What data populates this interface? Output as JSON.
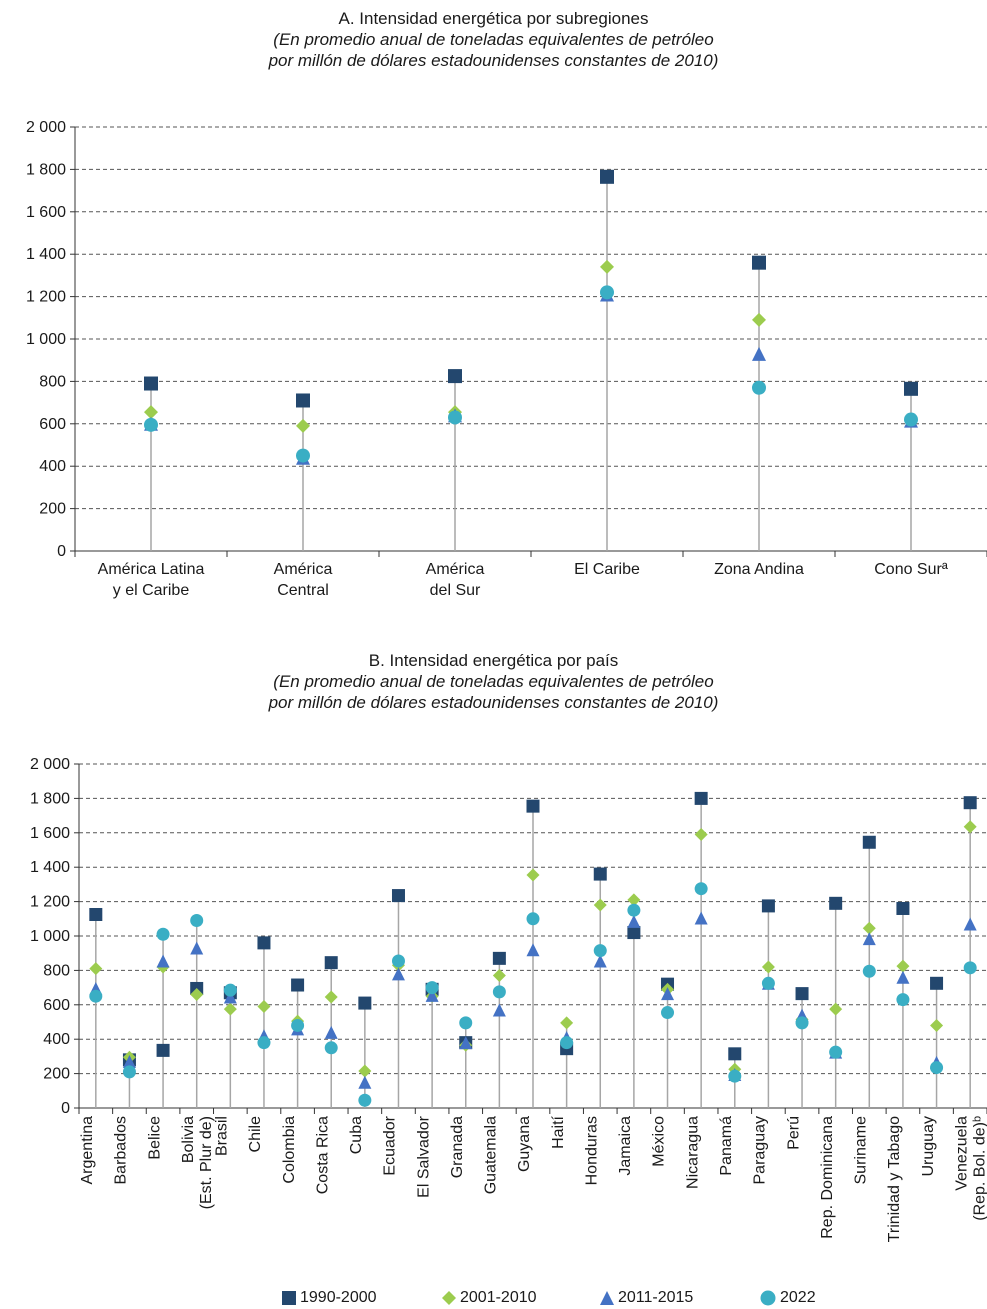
{
  "chart_a": {
    "title": "A. Intensidad energética por subregiones",
    "subtitle_1": "(En promedio anual de toneladas equivalentes de petróleo",
    "subtitle_2": "por millón de dólares estadounidenses constantes de 2010)"
  },
  "chart_b": {
    "title": "B. Intensidad energética por país",
    "subtitle_1": "(En promedio anual de toneladas equivalentes de petróleo",
    "subtitle_2": "por millón de dólares estadounidenses constantes de 2010)"
  },
  "legend": {
    "s1": "1990-2000",
    "s2": "2001-2010",
    "s3": "2011-2015",
    "s4": "2022"
  },
  "colors": {
    "1990-2000": "#23476e",
    "2001-2010": "#9ccc4e",
    "2011-2015": "#4472c4",
    "2022": "#3aaec4",
    "stem": "#a6a6a6",
    "grid": "#555555"
  },
  "chart_data": [
    {
      "type": "scatter",
      "title": "A. Intensidad energética por subregiones",
      "ylim": [
        0,
        2000
      ],
      "yticks": [
        "0",
        "200",
        "400",
        "600",
        "800",
        "1 000",
        "1 200",
        "1 400",
        "1 600",
        "1 800",
        "2 000"
      ],
      "grid": true,
      "categories": [
        [
          "América Latina",
          "y el Caribe"
        ],
        [
          "América",
          "Central"
        ],
        [
          "América",
          "del Sur"
        ],
        [
          "El Caribe"
        ],
        [
          "Zona Andina"
        ],
        [
          "Cono Surª"
        ]
      ],
      "series": [
        {
          "name": "1990-2000",
          "marker": "square",
          "values": [
            790,
            710,
            825,
            1765,
            1360,
            765
          ]
        },
        {
          "name": "2001-2010",
          "marker": "diamond",
          "values": [
            655,
            590,
            655,
            1340,
            1090,
            615
          ]
        },
        {
          "name": "2011-2015",
          "marker": "triangle",
          "values": [
            600,
            440,
            640,
            1210,
            930,
            615
          ]
        },
        {
          "name": "2022",
          "marker": "circle",
          "values": [
            595,
            450,
            630,
            1220,
            770,
            620
          ]
        }
      ]
    },
    {
      "type": "scatter",
      "title": "B. Intensidad energética por país",
      "ylim": [
        0,
        2000
      ],
      "yticks": [
        "0",
        "200",
        "400",
        "600",
        "800",
        "1 000",
        "1 200",
        "1 400",
        "1 600",
        "1 800",
        "2 000"
      ],
      "grid": true,
      "categories": [
        [
          "Argentina"
        ],
        [
          "Barbados"
        ],
        [
          "Belice"
        ],
        [
          "Bolivia",
          "(Est. Plur de)"
        ],
        [
          "Brasil"
        ],
        [
          "Chile"
        ],
        [
          "Colombia"
        ],
        [
          "Costa Rica"
        ],
        [
          "Cuba"
        ],
        [
          "Ecuador"
        ],
        [
          "El Salvador"
        ],
        [
          "Granada"
        ],
        [
          "Guatemala"
        ],
        [
          "Guyana"
        ],
        [
          "Haití"
        ],
        [
          "Honduras"
        ],
        [
          "Jamaica"
        ],
        [
          "México"
        ],
        [
          "Nicaragua"
        ],
        [
          "Panamá"
        ],
        [
          "Paraguay"
        ],
        [
          "Perú"
        ],
        [
          "Rep. Dominicana"
        ],
        [
          "Suriname"
        ],
        [
          "Trinidad y Tabago"
        ],
        [
          "Uruguay"
        ],
        [
          "Venezuela",
          "(Rep. Bol. de)ᵇ"
        ]
      ],
      "series": [
        {
          "name": "1990-2000",
          "marker": "square",
          "values": [
            1125,
            280,
            335,
            695,
            670,
            960,
            715,
            845,
            610,
            1235,
            690,
            380,
            870,
            1755,
            345,
            1360,
            1020,
            720,
            1800,
            315,
            1175,
            665,
            1190,
            1545,
            1160,
            725,
            1775
          ]
        },
        {
          "name": "2001-2010",
          "marker": "diamond",
          "values": [
            810,
            295,
            820,
            660,
            575,
            590,
            505,
            645,
            215,
            830,
            650,
            365,
            770,
            1355,
            495,
            1180,
            1210,
            690,
            1590,
            225,
            820,
            515,
            575,
            1045,
            825,
            480,
            1635
          ]
        },
        {
          "name": "2011-2015",
          "marker": "triangle",
          "values": [
            695,
            270,
            855,
            930,
            645,
            420,
            460,
            440,
            150,
            780,
            655,
            380,
            570,
            920,
            410,
            855,
            1085,
            665,
            1105,
            195,
            725,
            540,
            325,
            985,
            760,
            265,
            1070
          ]
        },
        {
          "name": "2022",
          "marker": "circle",
          "values": [
            650,
            210,
            1010,
            1090,
            685,
            380,
            480,
            350,
            45,
            855,
            700,
            495,
            675,
            1100,
            380,
            915,
            1150,
            555,
            1275,
            185,
            725,
            495,
            325,
            795,
            630,
            235,
            815
          ]
        }
      ]
    }
  ]
}
